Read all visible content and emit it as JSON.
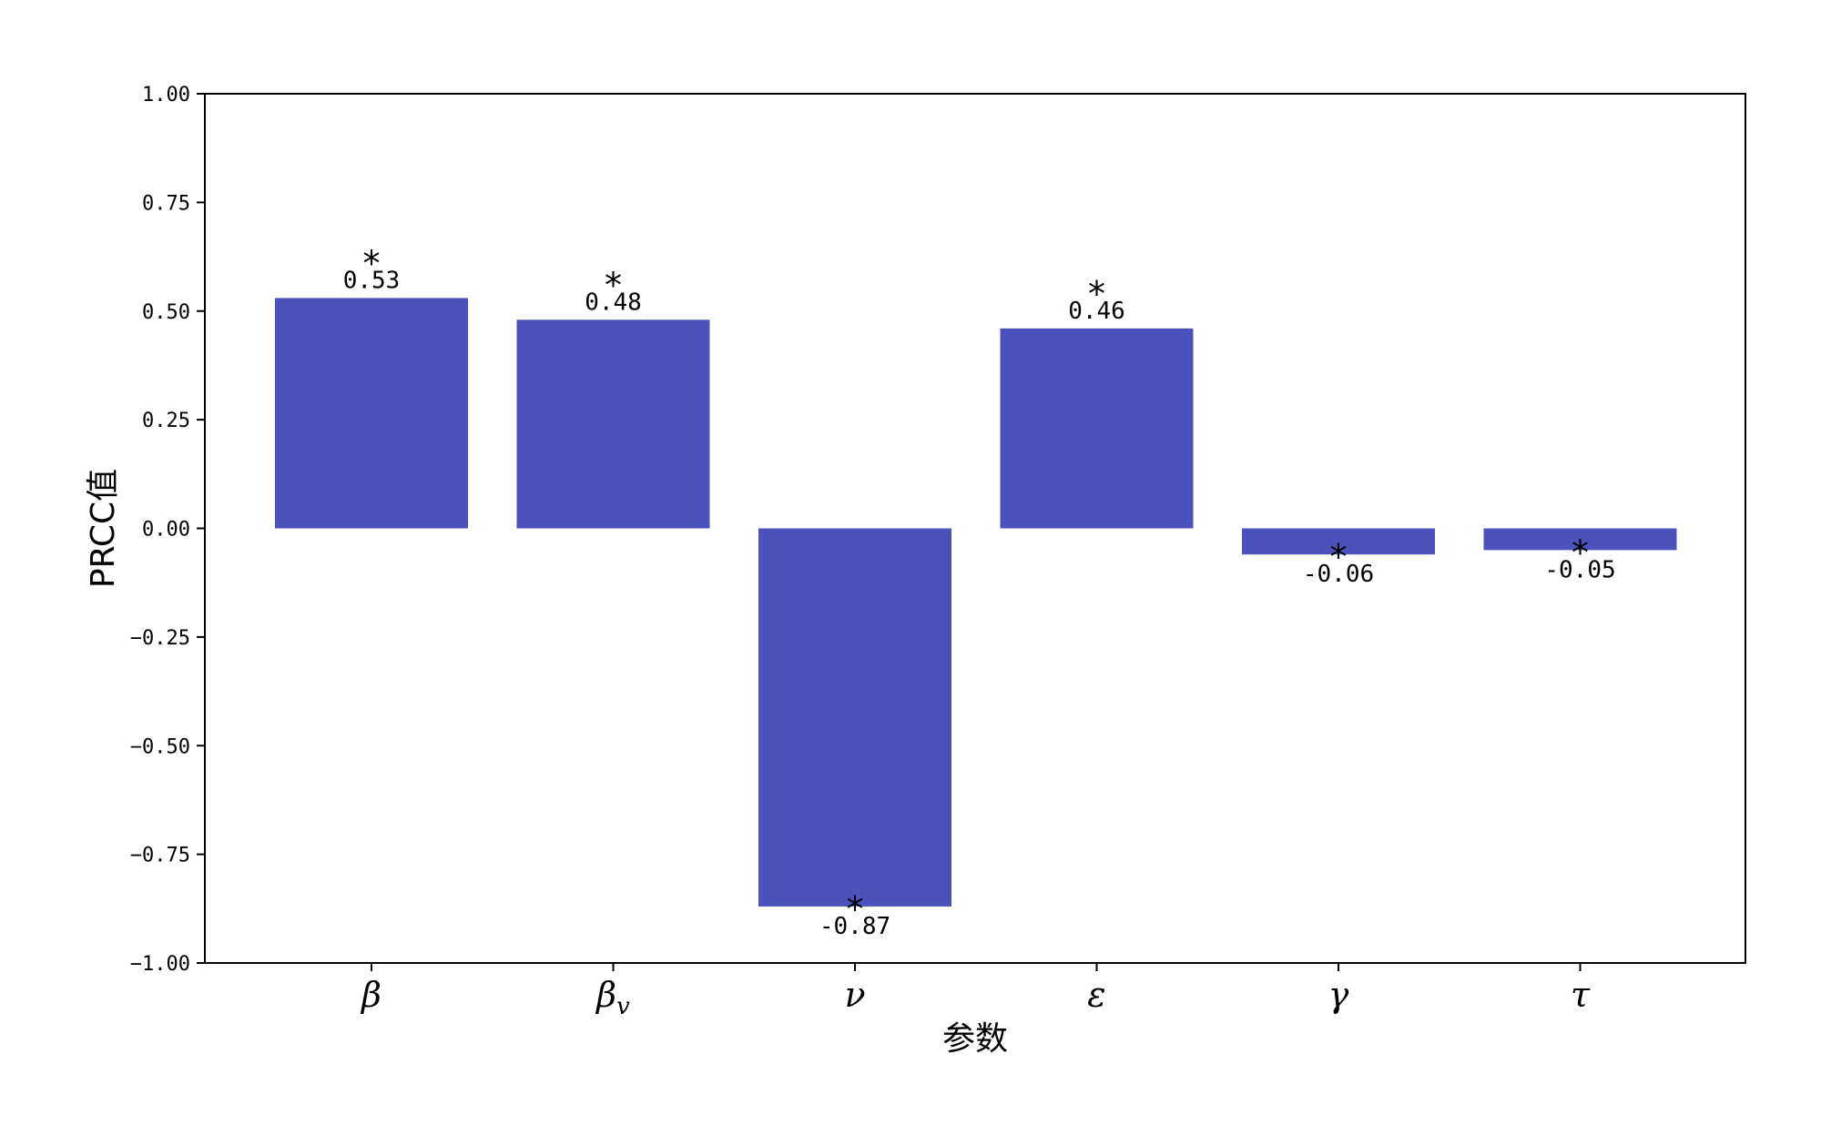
{
  "chart_data": {
    "type": "bar",
    "categories": [
      "β",
      "βv",
      "ν",
      "ε",
      "γ",
      "τ"
    ],
    "values": [
      0.53,
      0.48,
      -0.87,
      0.46,
      -0.06,
      -0.05
    ],
    "data_labels": [
      "0.53",
      "0.48",
      "-0.87",
      "0.46",
      "-0.06",
      "-0.05"
    ],
    "significance": [
      "*",
      "*",
      "*",
      "*",
      "*",
      "*"
    ],
    "xlabel": "参数",
    "ylabel": "PRCC值",
    "ylim": [
      -1.0,
      1.0
    ],
    "yticks": [
      1.0,
      0.75,
      0.5,
      0.25,
      0.0,
      -0.25,
      -0.5,
      -0.75,
      -1.0
    ],
    "ytick_labels": [
      "1.00",
      "0.75",
      "0.50",
      "0.25",
      "0.00",
      "−0.25",
      "−0.50",
      "−0.75",
      "−1.00"
    ],
    "bar_color": "#4c52bd",
    "grid": false,
    "legend": "none"
  }
}
